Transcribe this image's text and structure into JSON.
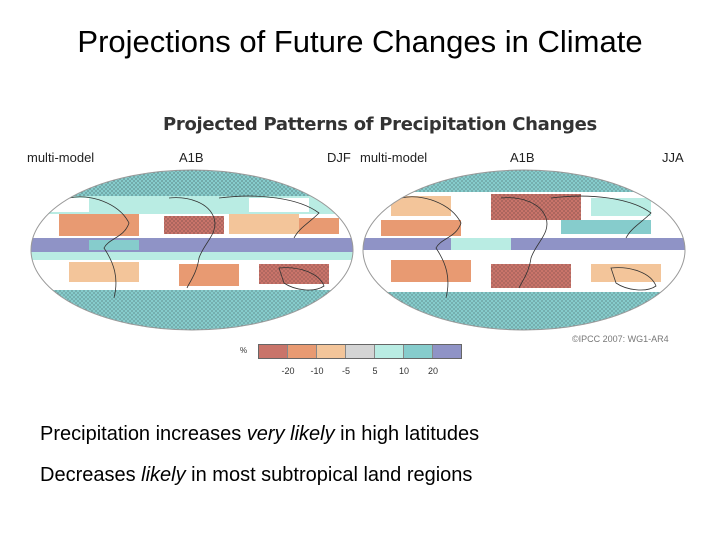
{
  "slide": {
    "title": "Projections of Future Changes in Climate"
  },
  "figure": {
    "title": "Projected Patterns of Precipitation Changes",
    "left_panel": {
      "model_label": "multi-model",
      "scenario_label": "A1B",
      "season_label": "DJF"
    },
    "right_panel": {
      "model_label": "multi-model",
      "scenario_label": "A1B",
      "season_label": "JJA"
    },
    "credit": "©IPCC 2007: WG1-AR4",
    "legend": {
      "unit": "%",
      "ticks": [
        "-20",
        "-10",
        "-5",
        "5",
        "10",
        "20"
      ],
      "colors": [
        "#c9746a",
        "#e89a72",
        "#f3c59a",
        "#d4d4d4",
        "#b9ece3",
        "#86cccc",
        "#8f93c6"
      ]
    },
    "map_colors": {
      "ocean_base": "#ffffff",
      "strong_decrease": "#c9746a",
      "decrease": "#e89a72",
      "slight_decrease": "#f3c59a",
      "neutral": "#d4d4d4",
      "slight_increase": "#b9ece3",
      "increase": "#86cccc",
      "strong_increase": "#8f93c6",
      "coast": "#333333"
    }
  },
  "bullets": [
    {
      "pre": "Precipitation increases ",
      "em": "very likely",
      "post": " in high latitudes"
    },
    {
      "pre": "Decreases ",
      "em": "likely",
      "post": " in most subtropical land regions"
    }
  ]
}
